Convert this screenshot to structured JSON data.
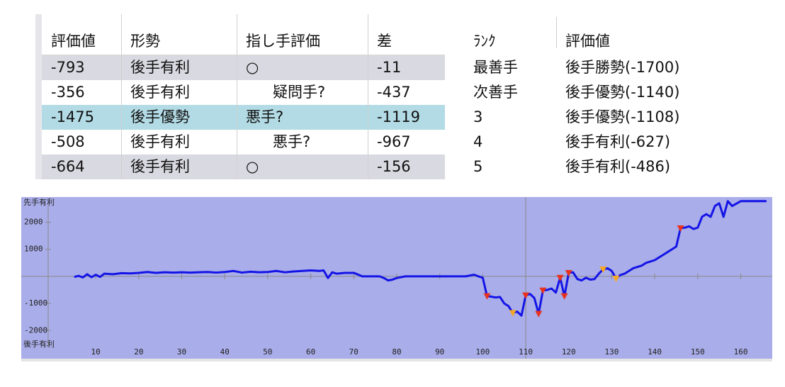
{
  "table": {
    "headers": [
      "評価値",
      "形勢",
      "指し手評価",
      "差"
    ],
    "rows": [
      [
        -793,
        "後手有利",
        "○",
        -11
      ],
      [
        -356,
        "後手有利",
        "疑問手?",
        -437
      ],
      [
        -1475,
        "後手優勢",
        "悪手?",
        -1119
      ],
      [
        -508,
        "後手有利",
        "悪手?",
        -967
      ],
      [
        -664,
        "後手有利",
        "○",
        -156
      ]
    ]
  },
  "candidates": {
    "headers": [
      "ﾗﾝｸ",
      "評価値"
    ],
    "rows": [
      [
        "最善手",
        "後手勝勢(-1700)"
      ],
      [
        "次善手",
        "後手優勢(-1140)"
      ],
      [
        "3",
        "後手優勢(-1108)"
      ],
      [
        "4",
        "後手有利(-627)"
      ],
      [
        "5",
        "後手有利(-486)"
      ]
    ]
  },
  "chart_data": {
    "type": "line",
    "top_label": "先手有利",
    "bottom_label": "後手有利",
    "xlim": [
      -7,
      167
    ],
    "ylim": [
      -2700,
      2800
    ],
    "xticks": [
      10,
      20,
      30,
      40,
      50,
      60,
      70,
      80,
      90,
      100,
      110,
      120,
      130,
      140,
      150,
      160
    ],
    "yticks": [
      -2000,
      -1000,
      1000,
      2000
    ],
    "cursor_x": 110,
    "x": [
      5,
      6,
      7,
      8,
      9,
      10,
      11,
      12,
      14,
      16,
      18,
      20,
      22,
      24,
      26,
      28,
      30,
      32,
      34,
      36,
      38,
      40,
      42,
      44,
      46,
      48,
      50,
      52,
      54,
      56,
      58,
      60,
      62,
      63,
      64,
      65,
      66,
      68,
      70,
      72,
      74,
      76,
      77,
      78,
      79,
      80,
      82,
      84,
      86,
      88,
      90,
      92,
      94,
      96,
      98,
      99,
      100,
      101,
      102,
      103,
      104,
      105,
      106,
      107,
      108,
      109,
      110,
      111,
      112,
      113,
      114,
      115,
      116,
      117,
      118,
      119,
      120,
      121,
      122,
      123,
      124,
      125,
      126,
      127,
      128,
      129,
      130,
      131,
      132,
      133,
      134,
      135,
      136,
      137,
      138,
      139,
      140,
      141,
      142,
      143,
      144,
      145,
      146,
      147,
      148,
      149,
      150,
      151,
      152,
      153,
      154,
      155,
      156,
      157,
      158,
      160,
      163,
      166
    ],
    "series": [
      {
        "color": "#1414e6",
        "values": [
          -20,
          20,
          -40,
          80,
          -30,
          60,
          -20,
          100,
          80,
          120,
          110,
          130,
          160,
          130,
          150,
          140,
          150,
          140,
          150,
          160,
          140,
          160,
          200,
          140,
          170,
          150,
          160,
          200,
          150,
          180,
          200,
          220,
          200,
          220,
          -60,
          150,
          100,
          130,
          130,
          0,
          0,
          0,
          -60,
          -150,
          -120,
          -60,
          0,
          0,
          0,
          0,
          0,
          0,
          0,
          0,
          60,
          0,
          -50,
          -730,
          -750,
          -780,
          -760,
          -1000,
          -1100,
          -1350,
          -1300,
          -1450,
          -700,
          -650,
          -800,
          -1380,
          -520,
          -500,
          -450,
          -600,
          -50,
          -730,
          130,
          150,
          -100,
          -150,
          -50,
          -120,
          -100,
          100,
          260,
          300,
          200,
          -80,
          50,
          100,
          200,
          300,
          350,
          400,
          500,
          550,
          600,
          700,
          800,
          900,
          1000,
          1100,
          1780,
          1800,
          1850,
          1750,
          1800,
          2200,
          2300,
          2200,
          2600,
          2700,
          2200,
          2780,
          2600,
          2780,
          2780,
          2780
        ]
      }
    ],
    "markers": [
      {
        "color": "#e8321e",
        "x": [
          101,
          110,
          113,
          114,
          118,
          119,
          120,
          146
        ],
        "values": [
          -730,
          -700,
          -1380,
          -520,
          -50,
          -730,
          130,
          1780
        ]
      },
      {
        "color": "#f5a623",
        "x": [
          107,
          128,
          131
        ],
        "values": [
          -1350,
          260,
          -80
        ]
      }
    ]
  }
}
